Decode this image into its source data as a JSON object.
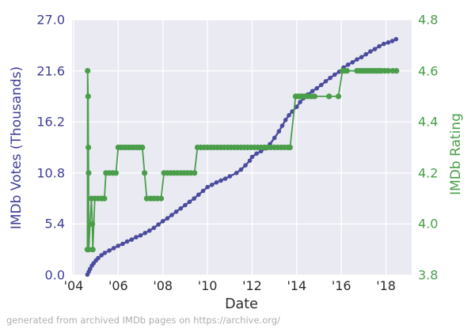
{
  "figure": {
    "caption": "generated from archived IMDb pages on https://archive.org/"
  },
  "chart_data": {
    "type": "line",
    "title": "",
    "xlabel": "Date",
    "grid": true,
    "legend": "none",
    "plot_bg": "#eaeaf2",
    "grid_color": "#ffffff",
    "x_range": [
      2003.93,
      2019.15
    ],
    "x_tick_labels": [
      "'04",
      "'06",
      "'08",
      "'10",
      "'12",
      "'14",
      "'16",
      "'18"
    ],
    "x_tick_values": [
      2004,
      2006,
      2008,
      2010,
      2012,
      2014,
      2016,
      2018
    ],
    "left_axis": {
      "label": "IMDb Votes (Thousands)",
      "color": "#3e3e96",
      "range": [
        0.0,
        27.0
      ],
      "tick_labels": [
        "0.0",
        "5.4",
        "10.8",
        "16.2",
        "21.6",
        "27.0"
      ],
      "tick_values": [
        0.0,
        5.4,
        10.8,
        16.2,
        21.6,
        27.0
      ]
    },
    "right_axis": {
      "label": "IMDb Rating",
      "color": "#4a9e4a",
      "range": [
        3.8,
        4.8
      ],
      "tick_labels": [
        "3.8",
        "4.0",
        "4.2",
        "4.4",
        "4.6",
        "4.8"
      ],
      "tick_values": [
        3.8,
        4.0,
        4.2,
        4.4,
        4.6,
        4.8
      ]
    },
    "series": [
      {
        "name": "IMDb Votes (Thousands)",
        "axis": "left",
        "color": "#4c4c9e",
        "marker_radius": 2.8,
        "line_width": 2.4,
        "points": [
          [
            2004.62,
            0.05
          ],
          [
            2004.68,
            0.35
          ],
          [
            2004.74,
            0.65
          ],
          [
            2004.82,
            1.0
          ],
          [
            2004.9,
            1.25
          ],
          [
            2005.0,
            1.55
          ],
          [
            2005.1,
            1.8
          ],
          [
            2005.25,
            2.1
          ],
          [
            2005.4,
            2.35
          ],
          [
            2005.6,
            2.6
          ],
          [
            2005.8,
            2.85
          ],
          [
            2006.0,
            3.1
          ],
          [
            2006.2,
            3.3
          ],
          [
            2006.4,
            3.55
          ],
          [
            2006.6,
            3.75
          ],
          [
            2006.8,
            4.0
          ],
          [
            2007.0,
            4.2
          ],
          [
            2007.2,
            4.45
          ],
          [
            2007.4,
            4.7
          ],
          [
            2007.6,
            5.0
          ],
          [
            2007.8,
            5.35
          ],
          [
            2008.0,
            5.7
          ],
          [
            2008.2,
            6.0
          ],
          [
            2008.4,
            6.35
          ],
          [
            2008.6,
            6.7
          ],
          [
            2008.8,
            7.05
          ],
          [
            2009.0,
            7.4
          ],
          [
            2009.2,
            7.75
          ],
          [
            2009.4,
            8.1
          ],
          [
            2009.6,
            8.5
          ],
          [
            2009.8,
            8.9
          ],
          [
            2010.0,
            9.3
          ],
          [
            2010.2,
            9.55
          ],
          [
            2010.4,
            9.8
          ],
          [
            2010.6,
            10.0
          ],
          [
            2010.8,
            10.2
          ],
          [
            2011.0,
            10.45
          ],
          [
            2011.3,
            10.8
          ],
          [
            2011.5,
            11.15
          ],
          [
            2011.7,
            11.6
          ],
          [
            2011.9,
            12.1
          ],
          [
            2012.0,
            12.5
          ],
          [
            2012.2,
            12.85
          ],
          [
            2012.4,
            13.1
          ],
          [
            2012.6,
            13.4
          ],
          [
            2012.8,
            13.85
          ],
          [
            2013.0,
            14.5
          ],
          [
            2013.2,
            15.2
          ],
          [
            2013.35,
            15.8
          ],
          [
            2013.5,
            16.4
          ],
          [
            2013.65,
            16.9
          ],
          [
            2013.8,
            17.3
          ],
          [
            2014.0,
            17.8
          ],
          [
            2014.15,
            18.3
          ],
          [
            2014.3,
            18.7
          ],
          [
            2014.5,
            19.1
          ],
          [
            2014.7,
            19.45
          ],
          [
            2014.9,
            19.75
          ],
          [
            2015.1,
            20.1
          ],
          [
            2015.3,
            20.5
          ],
          [
            2015.5,
            20.85
          ],
          [
            2015.7,
            21.2
          ],
          [
            2015.9,
            21.5
          ],
          [
            2016.1,
            21.95
          ],
          [
            2016.3,
            22.25
          ],
          [
            2016.5,
            22.5
          ],
          [
            2016.7,
            22.8
          ],
          [
            2016.9,
            23.05
          ],
          [
            2017.1,
            23.35
          ],
          [
            2017.3,
            23.65
          ],
          [
            2017.5,
            23.9
          ],
          [
            2017.7,
            24.2
          ],
          [
            2017.9,
            24.45
          ],
          [
            2018.1,
            24.6
          ],
          [
            2018.28,
            24.75
          ],
          [
            2018.45,
            24.95
          ]
        ]
      },
      {
        "name": "IMDb Rating",
        "axis": "right",
        "color": "#4a9e4a",
        "marker_radius": 3.6,
        "line_width": 1.8,
        "points": [
          [
            2004.62,
            3.9
          ],
          [
            2004.63,
            4.6
          ],
          [
            2004.65,
            4.5
          ],
          [
            2004.66,
            4.3
          ],
          [
            2004.67,
            4.2
          ],
          [
            2004.68,
            3.9
          ],
          [
            2004.8,
            4.1
          ],
          [
            2004.84,
            4.0
          ],
          [
            2004.86,
            3.9
          ],
          [
            2004.95,
            4.1
          ],
          [
            2005.1,
            4.1
          ],
          [
            2005.25,
            4.1
          ],
          [
            2005.38,
            4.1
          ],
          [
            2005.45,
            4.2
          ],
          [
            2005.6,
            4.2
          ],
          [
            2005.75,
            4.2
          ],
          [
            2005.9,
            4.2
          ],
          [
            2006.0,
            4.3
          ],
          [
            2006.12,
            4.3
          ],
          [
            2006.24,
            4.3
          ],
          [
            2006.36,
            4.3
          ],
          [
            2006.48,
            4.3
          ],
          [
            2006.6,
            4.3
          ],
          [
            2006.72,
            4.3
          ],
          [
            2006.84,
            4.3
          ],
          [
            2006.96,
            4.3
          ],
          [
            2007.08,
            4.3
          ],
          [
            2007.18,
            4.2
          ],
          [
            2007.28,
            4.1
          ],
          [
            2007.45,
            4.1
          ],
          [
            2007.6,
            4.1
          ],
          [
            2007.75,
            4.1
          ],
          [
            2007.92,
            4.1
          ],
          [
            2008.05,
            4.2
          ],
          [
            2008.2,
            4.2
          ],
          [
            2008.35,
            4.2
          ],
          [
            2008.5,
            4.2
          ],
          [
            2008.65,
            4.2
          ],
          [
            2008.8,
            4.2
          ],
          [
            2008.95,
            4.2
          ],
          [
            2009.1,
            4.2
          ],
          [
            2009.25,
            4.2
          ],
          [
            2009.42,
            4.2
          ],
          [
            2009.55,
            4.3
          ],
          [
            2009.7,
            4.3
          ],
          [
            2009.85,
            4.3
          ],
          [
            2010.0,
            4.3
          ],
          [
            2010.15,
            4.3
          ],
          [
            2010.3,
            4.3
          ],
          [
            2010.45,
            4.3
          ],
          [
            2010.6,
            4.3
          ],
          [
            2010.75,
            4.3
          ],
          [
            2010.9,
            4.3
          ],
          [
            2011.05,
            4.3
          ],
          [
            2011.2,
            4.3
          ],
          [
            2011.35,
            4.3
          ],
          [
            2011.5,
            4.3
          ],
          [
            2011.65,
            4.3
          ],
          [
            2011.8,
            4.3
          ],
          [
            2011.95,
            4.3
          ],
          [
            2012.1,
            4.3
          ],
          [
            2012.25,
            4.3
          ],
          [
            2012.4,
            4.3
          ],
          [
            2012.55,
            4.3
          ],
          [
            2012.7,
            4.3
          ],
          [
            2012.85,
            4.3
          ],
          [
            2013.0,
            4.3
          ],
          [
            2013.15,
            4.3
          ],
          [
            2013.3,
            4.3
          ],
          [
            2013.45,
            4.3
          ],
          [
            2013.6,
            4.3
          ],
          [
            2013.7,
            4.3
          ],
          [
            2013.95,
            4.5
          ],
          [
            2014.05,
            4.5
          ],
          [
            2014.15,
            4.5
          ],
          [
            2014.25,
            4.5
          ],
          [
            2014.35,
            4.5
          ],
          [
            2014.5,
            4.5
          ],
          [
            2014.65,
            4.5
          ],
          [
            2014.8,
            4.5
          ],
          [
            2015.45,
            4.5
          ],
          [
            2015.87,
            4.5
          ],
          [
            2016.05,
            4.6
          ],
          [
            2016.15,
            4.6
          ],
          [
            2016.25,
            4.6
          ],
          [
            2016.7,
            4.6
          ],
          [
            2016.8,
            4.6
          ],
          [
            2016.9,
            4.6
          ],
          [
            2017.0,
            4.6
          ],
          [
            2017.1,
            4.6
          ],
          [
            2017.2,
            4.6
          ],
          [
            2017.3,
            4.6
          ],
          [
            2017.4,
            4.6
          ],
          [
            2017.5,
            4.6
          ],
          [
            2017.6,
            4.6
          ],
          [
            2017.7,
            4.6
          ],
          [
            2017.8,
            4.6
          ],
          [
            2017.95,
            4.6
          ],
          [
            2018.1,
            4.6
          ],
          [
            2018.3,
            4.6
          ],
          [
            2018.47,
            4.6
          ]
        ]
      }
    ]
  }
}
